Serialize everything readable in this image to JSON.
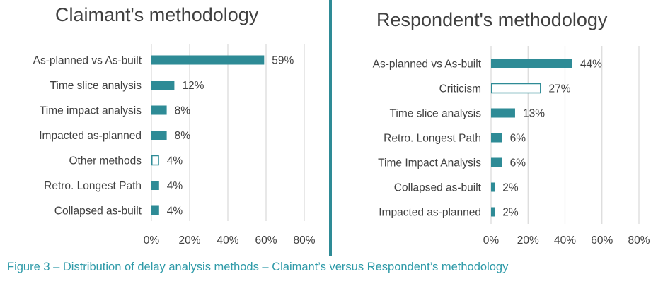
{
  "colors": {
    "bar": "#2e8b96",
    "divider": "#2e8b96",
    "caption": "#2e9aa8",
    "grid": "#d9d9d9",
    "text": "#404040"
  },
  "caption": "Figure 3 – Distribution of delay analysis methods – Claimant’s versus Respondent’s methodology",
  "chart_data": [
    {
      "type": "bar",
      "orientation": "horizontal",
      "title": "Claimant's methodology",
      "categories": [
        "As-planned vs As-built",
        "Time slice analysis",
        "Time impact analysis",
        "Impacted as-planned",
        "Other methods",
        "Retro. Longest Path",
        "Collapsed as-built"
      ],
      "values": [
        59,
        12,
        8,
        8,
        4,
        4,
        4
      ],
      "value_labels": [
        "59%",
        "12%",
        "8%",
        "8%",
        "4%",
        "4%",
        "4%"
      ],
      "hollow": [
        false,
        false,
        false,
        false,
        true,
        false,
        false
      ],
      "xlim": [
        0,
        80
      ],
      "xticks": [
        0,
        20,
        40,
        60,
        80
      ],
      "xtick_labels": [
        "0%",
        "20%",
        "40%",
        "60%",
        "80%"
      ],
      "grid": true
    },
    {
      "type": "bar",
      "orientation": "horizontal",
      "title": "Respondent's methodology",
      "categories": [
        "As-planned vs As-built",
        "Criticism",
        "Time slice analysis",
        "Retro. Longest Path",
        "Time Impact Analysis",
        "Collapsed as-built",
        "Impacted as-planned"
      ],
      "values": [
        44,
        27,
        13,
        6,
        6,
        2,
        2
      ],
      "value_labels": [
        "44%",
        "27%",
        "13%",
        "6%",
        "6%",
        "2%",
        "2%"
      ],
      "hollow": [
        false,
        true,
        false,
        false,
        false,
        false,
        false
      ],
      "xlim": [
        0,
        80
      ],
      "xticks": [
        0,
        20,
        40,
        60,
        80
      ],
      "xtick_labels": [
        "0%",
        "20%",
        "40%",
        "60%",
        "80%"
      ],
      "grid": true
    }
  ]
}
